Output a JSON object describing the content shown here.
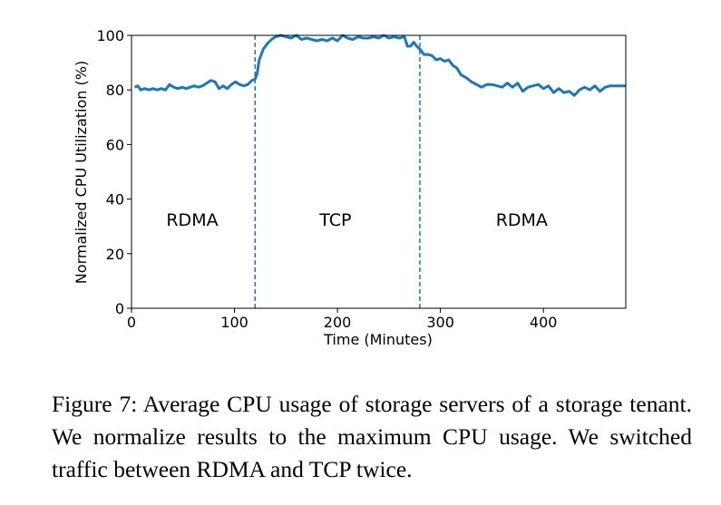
{
  "chart_data": {
    "type": "line",
    "xlabel": "Time (Minutes)",
    "ylabel": "Normalized CPU Utilization (%)",
    "x": [
      3,
      6,
      9,
      13,
      17,
      21,
      25,
      29,
      33,
      37,
      41,
      45,
      49,
      53,
      57,
      61,
      65,
      69,
      73,
      77,
      81,
      85,
      89,
      93,
      97,
      101,
      105,
      109,
      113,
      117,
      120,
      122,
      124,
      126,
      128,
      132,
      136,
      140,
      145,
      150,
      155,
      160,
      165,
      170,
      175,
      180,
      185,
      190,
      195,
      200,
      205,
      210,
      215,
      220,
      225,
      230,
      235,
      240,
      245,
      250,
      255,
      260,
      265,
      268,
      271,
      274,
      277,
      280,
      284,
      288,
      292,
      296,
      300,
      304,
      308,
      312,
      316,
      320,
      325,
      330,
      335,
      340,
      345,
      350,
      355,
      360,
      365,
      370,
      375,
      380,
      385,
      390,
      395,
      400,
      405,
      410,
      415,
      420,
      425,
      430,
      435,
      440,
      445,
      450,
      455,
      460,
      465,
      470,
      475,
      480
    ],
    "series": [
      {
        "color": "#1f77b4",
        "values": [
          81,
          81.5,
          80,
          80.5,
          80,
          80.5,
          80,
          80.5,
          80,
          82,
          81,
          80.5,
          81,
          80.5,
          81,
          81.5,
          81,
          81.5,
          82.5,
          83.5,
          83,
          80.5,
          81.5,
          80.5,
          82,
          83,
          82,
          81.5,
          82,
          83.5,
          84,
          86,
          91,
          93,
          95,
          97,
          98.5,
          99.5,
          100,
          99.5,
          99,
          100,
          98.5,
          99,
          98.5,
          98,
          98.5,
          98,
          99,
          98,
          100,
          99,
          98.5,
          99.5,
          99,
          99,
          99.5,
          99,
          100,
          99,
          99.5,
          99,
          99.5,
          96,
          96,
          97.5,
          96,
          95,
          93,
          93,
          92.5,
          91,
          91.5,
          90.5,
          91,
          89,
          88,
          85.5,
          84.5,
          83,
          82,
          81,
          82,
          82,
          81.5,
          81,
          82.5,
          81,
          82.5,
          79.5,
          81,
          81.5,
          82,
          80.5,
          81.5,
          79,
          80.5,
          79,
          79.5,
          78,
          80,
          81,
          80,
          81.5,
          79.5,
          81,
          81.5,
          81.5,
          81.5,
          81.5
        ]
      }
    ],
    "vlines": [
      120,
      280
    ],
    "annotations": [
      {
        "text": "RDMA",
        "x": 59,
        "y": 32.5
      },
      {
        "text": "TCP",
        "x": 198,
        "y": 32.5
      },
      {
        "text": "RDMA",
        "x": 379,
        "y": 32.5
      }
    ],
    "xlim": [
      0,
      480
    ],
    "ylim": [
      0,
      100
    ],
    "xticks": [
      0,
      100,
      200,
      300,
      400
    ],
    "yticks": [
      0,
      20,
      40,
      60,
      80,
      100
    ]
  },
  "caption": "Figure 7: Average CPU usage of storage servers of a storage tenant. We normalize results to the maximum CPU usage. We switched traffic between RDMA and TCP twice."
}
